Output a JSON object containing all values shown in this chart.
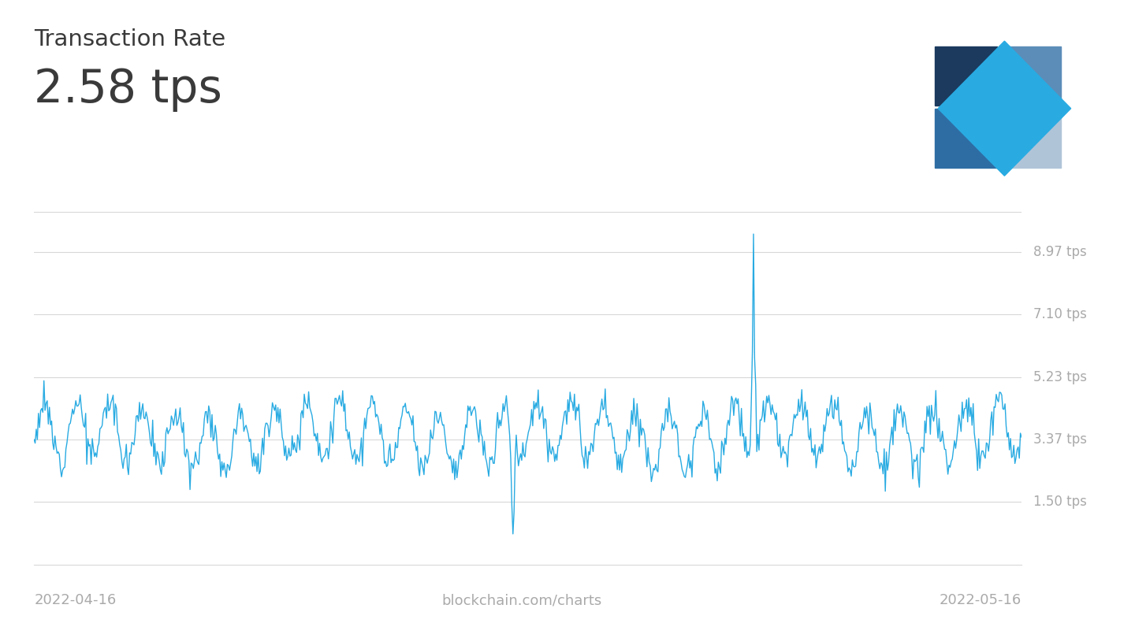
{
  "title_line1": "Transaction Rate",
  "title_line2": "2.58 tps",
  "date_start": "2022-04-16",
  "date_end": "2022-05-16",
  "watermark": "blockchain.com/charts",
  "y_ticks": [
    1.5,
    3.37,
    5.23,
    7.1,
    8.97
  ],
  "y_tick_labels": [
    "1.50 tps",
    "3.37 tps",
    "5.23 tps",
    "7.10 tps",
    "8.97 tps"
  ],
  "ylim_min": 0.3,
  "ylim_max": 10.2,
  "line_color": "#29abe2",
  "background_color": "#ffffff",
  "text_color_dark": "#3a3a3a",
  "text_color_light": "#aaaaaa",
  "grid_color": "#d8d8d8",
  "num_points": 900,
  "logo_colors": {
    "dark_navy": "#1b3a5e",
    "medium_blue": "#2e6da4",
    "steel_blue": "#5b8db8",
    "light_gray_blue": "#b0c4d8",
    "sky_blue": "#29abe2",
    "lighter_blue": "#5bc8f0"
  }
}
